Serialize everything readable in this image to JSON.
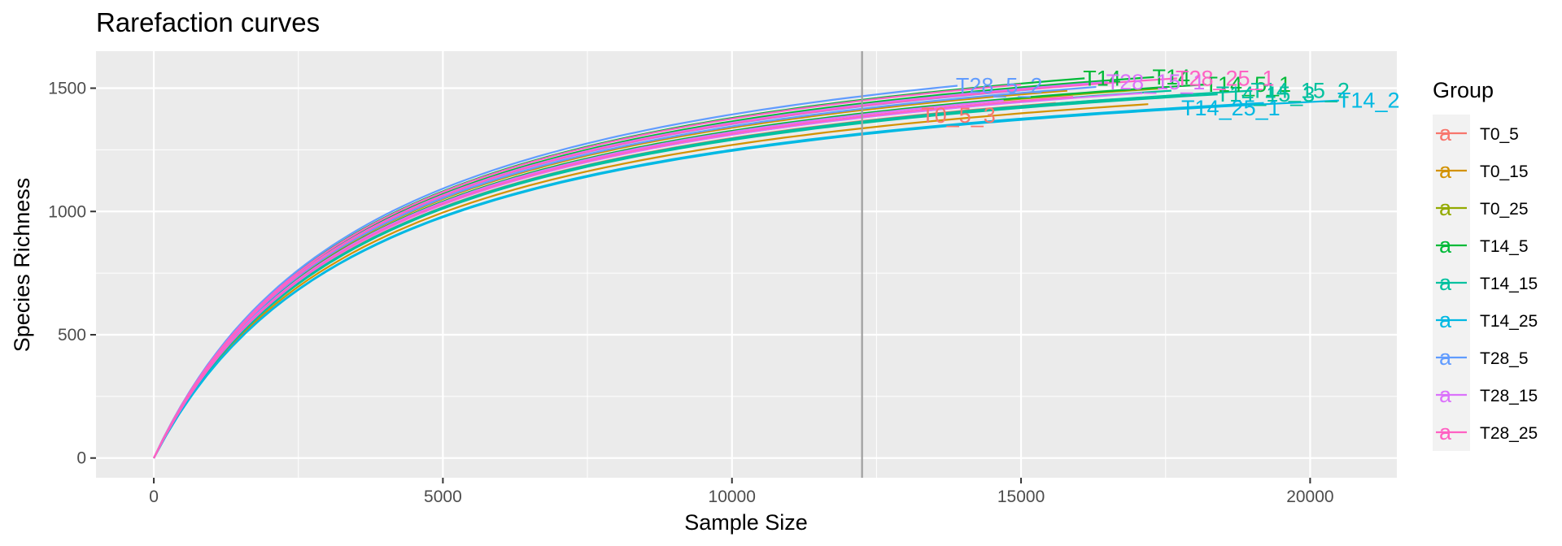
{
  "chart_data": {
    "type": "line",
    "title": "Rarefaction curves",
    "xlabel": "Sample Size",
    "ylabel": "Species Richness",
    "xlim": [
      -1000,
      21500
    ],
    "ylim": [
      -80,
      1650
    ],
    "x_ticks": [
      0,
      5000,
      10000,
      15000,
      20000
    ],
    "x_tick_labels": [
      "0",
      "5000",
      "10000",
      "15000",
      "20000"
    ],
    "y_ticks": [
      0,
      500,
      1000,
      1500
    ],
    "y_tick_labels": [
      "0",
      "500",
      "1000",
      "1500"
    ],
    "grid": true,
    "vline": 12250,
    "legend": {
      "title": "Group",
      "position": "right",
      "key_glyph": "a",
      "entries": [
        {
          "name": "T0_5",
          "color": "#F8766D"
        },
        {
          "name": "T0_15",
          "color": "#D39200"
        },
        {
          "name": "T0_25",
          "color": "#93AA00"
        },
        {
          "name": "T14_5",
          "color": "#00BA38"
        },
        {
          "name": "T14_15",
          "color": "#00C19F"
        },
        {
          "name": "T14_25",
          "color": "#00B9E3"
        },
        {
          "name": "T28_5",
          "color": "#619CFF"
        },
        {
          "name": "T28_15",
          "color": "#DB72FB"
        },
        {
          "name": "T28_25",
          "color": "#FF61C3"
        }
      ]
    },
    "series": [
      {
        "group": "T0_5",
        "color": "#F8766D",
        "end_x": 13300,
        "end_y": 1390,
        "label": "T0_5_3"
      },
      {
        "group": "T0_5",
        "color": "#F8766D",
        "end_x": 15600,
        "end_y": 1440,
        "label": ""
      },
      {
        "group": "T0_5",
        "color": "#F8766D",
        "end_x": 16600,
        "end_y": 1455,
        "label": ""
      },
      {
        "group": "T0_15",
        "color": "#D39200",
        "end_x": 17200,
        "end_y": 1435,
        "label": ""
      },
      {
        "group": "T0_15",
        "color": "#D39200",
        "end_x": 16200,
        "end_y": 1520,
        "label": ""
      },
      {
        "group": "T0_15",
        "color": "#D39200",
        "end_x": 15800,
        "end_y": 1490,
        "label": ""
      },
      {
        "group": "T0_25",
        "color": "#93AA00",
        "end_x": 15300,
        "end_y": 1450,
        "label": ""
      },
      {
        "group": "T0_25",
        "color": "#93AA00",
        "end_x": 17500,
        "end_y": 1500,
        "label": ""
      },
      {
        "group": "T0_25",
        "color": "#93AA00",
        "end_x": 16400,
        "end_y": 1470,
        "label": ""
      },
      {
        "group": "T14_5",
        "color": "#00BA38",
        "end_x": 16100,
        "end_y": 1540,
        "label": "T14"
      },
      {
        "group": "T14_5",
        "color": "#00BA38",
        "end_x": 17300,
        "end_y": 1545,
        "label": "T14"
      },
      {
        "group": "T14_5",
        "color": "#00BA38",
        "end_x": 18200,
        "end_y": 1515,
        "label": "T14_5_1"
      },
      {
        "group": "T14_15",
        "color": "#00C19F",
        "end_x": 17600,
        "end_y": 1490,
        "label": ""
      },
      {
        "group": "T14_15",
        "color": "#00C19F",
        "end_x": 18400,
        "end_y": 1475,
        "label": "T14_15_3"
      },
      {
        "group": "T14_15",
        "color": "#00C19F",
        "end_x": 19000,
        "end_y": 1490,
        "label": "T14_15_2"
      },
      {
        "group": "T14_25",
        "color": "#00B9E3",
        "end_x": 17800,
        "end_y": 1420,
        "label": "T14_25_1"
      },
      {
        "group": "T14_25",
        "color": "#00B9E3",
        "end_x": 19200,
        "end_y": 1440,
        "label": ""
      },
      {
        "group": "T14_25",
        "color": "#00B9E3",
        "end_x": 20500,
        "end_y": 1450,
        "label": "T14_2"
      },
      {
        "group": "T28_5",
        "color": "#619CFF",
        "end_x": 13900,
        "end_y": 1510,
        "label": "T28_5_2"
      },
      {
        "group": "T28_5",
        "color": "#619CFF",
        "end_x": 15200,
        "end_y": 1495,
        "label": ""
      },
      {
        "group": "T28_5",
        "color": "#619CFF",
        "end_x": 16300,
        "end_y": 1505,
        "label": ""
      },
      {
        "group": "T28_15",
        "color": "#DB72FB",
        "end_x": 14700,
        "end_y": 1450,
        "label": ""
      },
      {
        "group": "T28_15",
        "color": "#DB72FB",
        "end_x": 16500,
        "end_y": 1525,
        "label": "T28_15_1"
      },
      {
        "group": "T28_15",
        "color": "#DB72FB",
        "end_x": 17100,
        "end_y": 1480,
        "label": ""
      },
      {
        "group": "T28_25",
        "color": "#FF61C3",
        "end_x": 15000,
        "end_y": 1515,
        "label": ""
      },
      {
        "group": "T28_25",
        "color": "#FF61C3",
        "end_x": 17700,
        "end_y": 1540,
        "label": "T28_25_1"
      },
      {
        "group": "T28_25",
        "color": "#FF61C3",
        "end_x": 15900,
        "end_y": 1465,
        "label": ""
      }
    ]
  }
}
